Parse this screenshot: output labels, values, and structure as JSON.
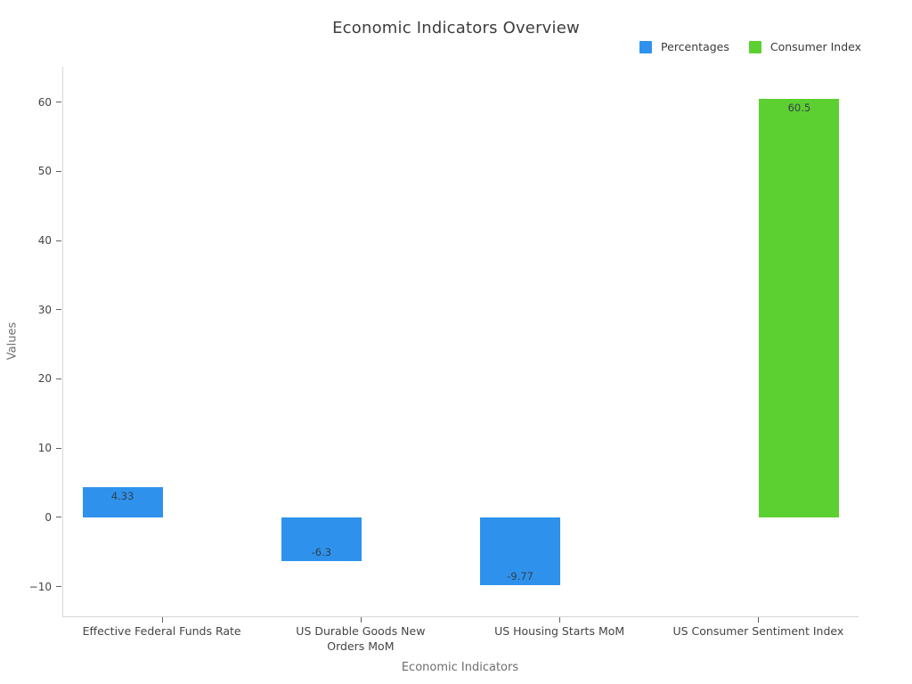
{
  "chart_data": {
    "type": "bar",
    "title": "Economic Indicators Overview",
    "xlabel": "Economic Indicators",
    "ylabel": "Values",
    "categories": [
      "Effective Federal Funds Rate",
      "US Durable Goods New\nOrders MoM",
      "US Housing Starts MoM",
      "US Consumer Sentiment Index"
    ],
    "series": [
      {
        "name": "Percentages",
        "color": "#2e92ed",
        "values": [
          4.33,
          -6.3,
          -9.77,
          null
        ]
      },
      {
        "name": "Consumer Index",
        "color": "#5cd030",
        "values": [
          null,
          null,
          null,
          60.5
        ]
      }
    ],
    "bar_value_labels": [
      "4.33",
      "-6.3",
      "-9.77",
      "60.5"
    ],
    "yticks": [
      -10,
      0,
      10,
      20,
      30,
      40,
      50,
      60
    ],
    "ylim": [
      -14.3,
      65.1
    ],
    "grid": false,
    "legend_position": "top-right",
    "background_color": "#ffffff",
    "axis_line_color": "#d6d6d6"
  }
}
